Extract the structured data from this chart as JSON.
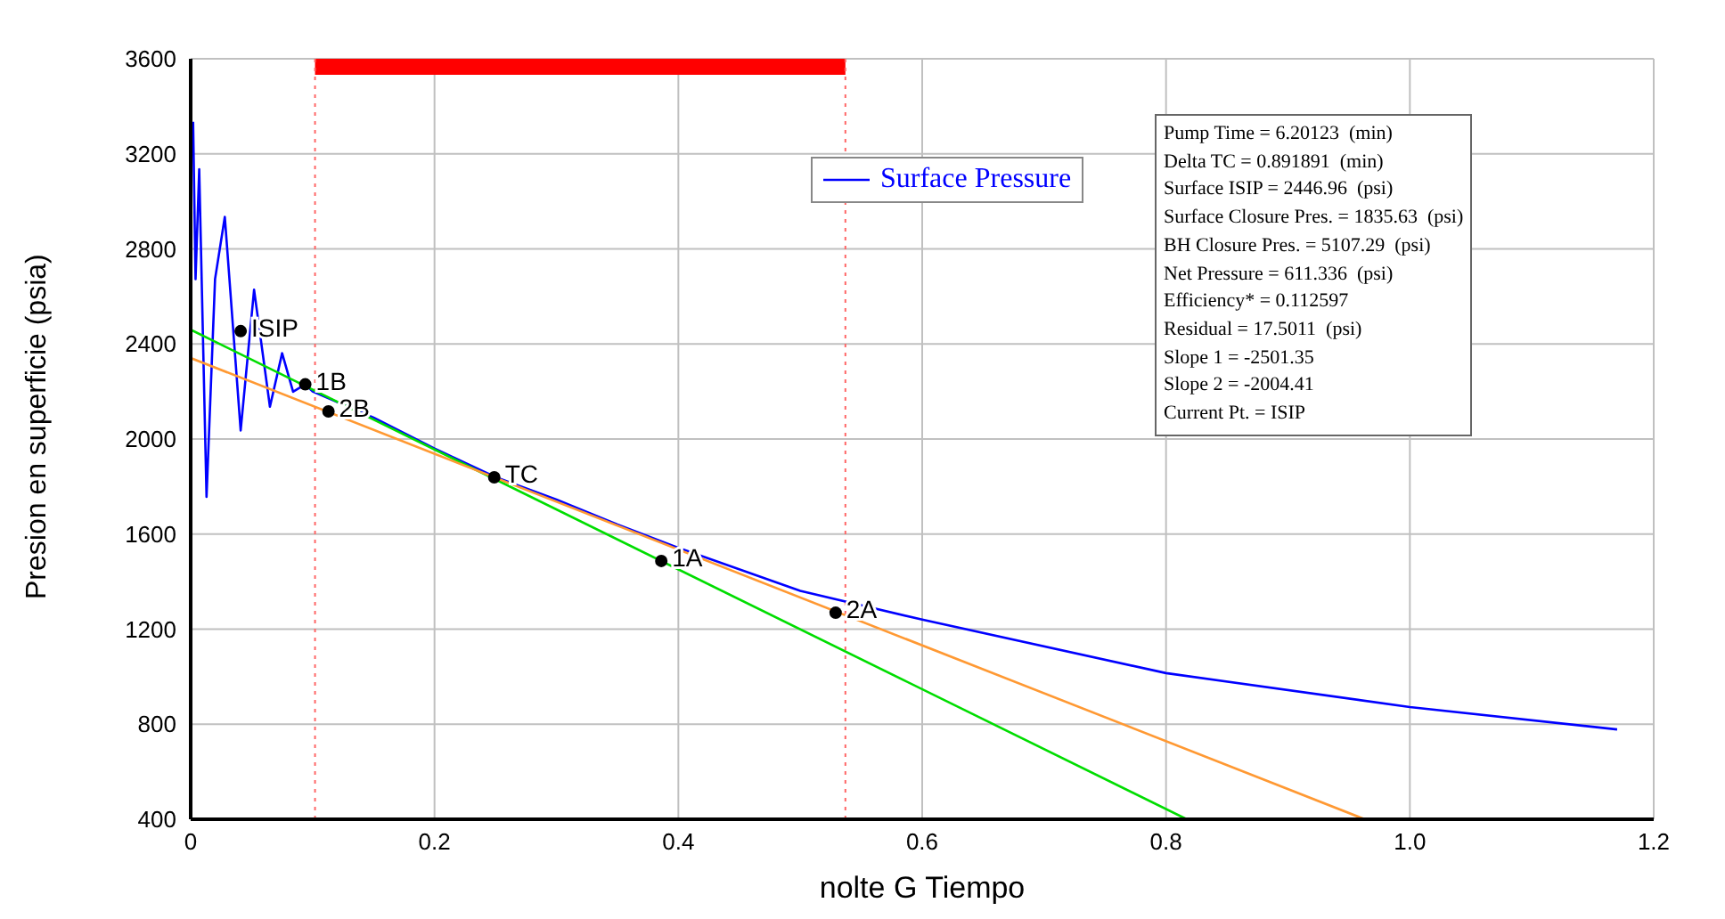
{
  "chart_data": {
    "type": "line",
    "xlabel": "nolte G  Tiempo",
    "ylabel": "Presion en superficie (psia)",
    "xlim": [
      0,
      1.2
    ],
    "xticks": [
      0,
      0.2,
      0.4,
      0.6,
      0.8,
      {
        "value": 1,
        "label": "1.0"
      },
      1.2
    ],
    "ylim": [
      400,
      3600
    ],
    "yticks": [
      400,
      800,
      1200,
      1600,
      2000,
      2400,
      2800,
      3200,
      3600
    ],
    "grid": true,
    "legend": "top right",
    "marker": "none",
    "line_style": "solid",
    "series": [
      {
        "name": "Surface Pressure",
        "color": "#0000ff",
        "x": [
          0.002,
          0.004,
          0.007,
          0.013,
          0.02,
          0.028,
          0.041,
          0.052,
          0.065,
          0.075,
          0.084,
          0.094,
          0.1,
          0.15,
          0.2,
          0.25,
          0.3,
          0.35,
          0.4,
          0.5,
          0.6,
          0.8,
          1.0,
          1.17
        ],
        "values": [
          3335,
          2673,
          3135,
          1757,
          2673,
          2935,
          2036,
          2628,
          2136,
          2361,
          2199,
          2230,
          2200,
          2090,
          1960,
          1840,
          1745,
          1640,
          1542,
          1361,
          1240,
          1015,
          872,
          778
        ]
      },
      {
        "type": "line",
        "color": "#00dd00",
        "x": [
          0,
          0.817
        ],
        "values": [
          2460,
          400
        ]
      },
      {
        "type": "line",
        "color": "#ff9933",
        "x": [
          0,
          0.963
        ],
        "values": [
          2341,
          400
        ]
      },
      {
        "type": "scatter",
        "color": "#000000",
        "marker": "circle",
        "x": [
          0.041,
          0.094,
          0.113,
          0.249,
          0.386,
          0.529
        ],
        "values": [
          2454,
          2230,
          2116,
          1839,
          1487,
          1269
        ]
      }
    ],
    "ref_lines": [
      {
        "axis": "x",
        "value": 0.102,
        "color": "#ff6666",
        "line_style": "dotted"
      },
      {
        "axis": "x",
        "value": 0.537,
        "color": "#ff6666",
        "line_style": "dotted"
      }
    ],
    "annotations": [
      "Pump Time = 6.20123  (min)",
      "Delta TC = 0.891891  (min)",
      "Surface ISIP = 2446.96  (psi)",
      "Surface Closure Pres. = 1835.63  (psi)",
      "BH Closure Pres. = 5107.29  (psi)",
      "Net Pressure = 611.336  (psi)",
      "Efficiency* = 0.112597",
      "Residual = 17.5011  (psi)",
      "Slope 1 = -2501.35",
      "Slope 2 = -2004.41",
      "Current Pt. = ISIP",
      {
        "text": "ISIP",
        "x": 0.041,
        "y": 2454
      },
      {
        "text": "1B",
        "x": 0.094,
        "y": 2230
      },
      {
        "text": "2B",
        "x": 0.113,
        "y": 2116
      },
      {
        "text": "TC",
        "x": 0.249,
        "y": 1839
      },
      {
        "text": "1A",
        "x": 0.386,
        "y": 1487
      },
      {
        "text": "2A",
        "x": 0.529,
        "y": 1269
      }
    ]
  }
}
